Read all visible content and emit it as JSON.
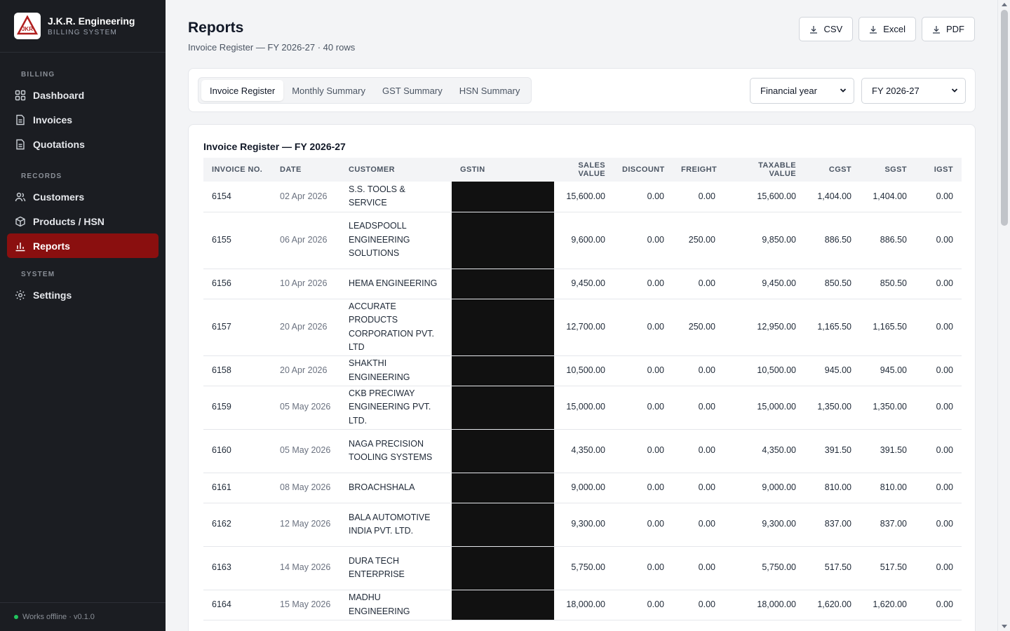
{
  "brand": {
    "name": "J.K.R. Engineering",
    "subtitle": "BILLING SYSTEM",
    "logo_text": "JKR"
  },
  "nav": {
    "billing_label": "BILLING",
    "records_label": "RECORDS",
    "system_label": "SYSTEM",
    "dashboard": "Dashboard",
    "invoices": "Invoices",
    "quotations": "Quotations",
    "customers": "Customers",
    "products": "Products / HSN",
    "reports": "Reports",
    "settings": "Settings"
  },
  "footer": {
    "status": "Works offline · v0.1.0"
  },
  "page": {
    "title": "Reports",
    "subtitle": "Invoice Register — FY 2026-27 · 40 rows"
  },
  "exports": {
    "csv": "CSV",
    "excel": "Excel",
    "pdf": "PDF"
  },
  "tabs": {
    "invoice_register": "Invoice Register",
    "monthly_summary": "Monthly Summary",
    "gst_summary": "GST Summary",
    "hsn_summary": "HSN Summary"
  },
  "filters": {
    "period_type": "Financial year",
    "period": "FY 2026-27"
  },
  "table": {
    "title": "Invoice Register — FY 2026-27",
    "headers": {
      "invoice_no": "INVOICE NO.",
      "date": "DATE",
      "customer": "CUSTOMER",
      "gstin": "GSTIN",
      "sales_value": "SALES VALUE",
      "discount": "DISCOUNT",
      "freight": "FREIGHT",
      "taxable_value": "TAXABLE VALUE",
      "cgst": "CGST",
      "sgst": "SGST",
      "igst": "IGST"
    },
    "rows": [
      {
        "inv": "6154",
        "date": "02 Apr 2026",
        "customer": "S.S. TOOLS & SERVICE",
        "gstin": "",
        "sales": "15,600.00",
        "discount": "0.00",
        "freight": "0.00",
        "taxable": "15,600.00",
        "cgst": "1,404.00",
        "sgst": "1,404.00",
        "igst": "0.00"
      },
      {
        "inv": "6155",
        "date": "06 Apr 2026",
        "customer": "LEADSPOOLL ENGINEERING SOLUTIONS",
        "gstin": "",
        "sales": "9,600.00",
        "discount": "0.00",
        "freight": "250.00",
        "taxable": "9,850.00",
        "cgst": "886.50",
        "sgst": "886.50",
        "igst": "0.00"
      },
      {
        "inv": "6156",
        "date": "10 Apr 2026",
        "customer": "HEMA ENGINEERING",
        "gstin": "",
        "sales": "9,450.00",
        "discount": "0.00",
        "freight": "0.00",
        "taxable": "9,450.00",
        "cgst": "850.50",
        "sgst": "850.50",
        "igst": "0.00"
      },
      {
        "inv": "6157",
        "date": "20 Apr 2026",
        "customer": "ACCURATE PRODUCTS CORPORATION PVT. LTD",
        "gstin": "",
        "sales": "12,700.00",
        "discount": "0.00",
        "freight": "250.00",
        "taxable": "12,950.00",
        "cgst": "1,165.50",
        "sgst": "1,165.50",
        "igst": "0.00"
      },
      {
        "inv": "6158",
        "date": "20 Apr 2026",
        "customer": "SHAKTHI ENGINEERING",
        "gstin": "",
        "sales": "10,500.00",
        "discount": "0.00",
        "freight": "0.00",
        "taxable": "10,500.00",
        "cgst": "945.00",
        "sgst": "945.00",
        "igst": "0.00"
      },
      {
        "inv": "6159",
        "date": "05 May 2026",
        "customer": "CKB PRECIWAY ENGINEERING PVT. LTD.",
        "gstin": "",
        "sales": "15,000.00",
        "discount": "0.00",
        "freight": "0.00",
        "taxable": "15,000.00",
        "cgst": "1,350.00",
        "sgst": "1,350.00",
        "igst": "0.00"
      },
      {
        "inv": "6160",
        "date": "05 May 2026",
        "customer": "NAGA PRECISION TOOLING SYSTEMS",
        "gstin": "",
        "sales": "4,350.00",
        "discount": "0.00",
        "freight": "0.00",
        "taxable": "4,350.00",
        "cgst": "391.50",
        "sgst": "391.50",
        "igst": "0.00"
      },
      {
        "inv": "6161",
        "date": "08 May 2026",
        "customer": "BROACHSHALA",
        "gstin": "",
        "sales": "9,000.00",
        "discount": "0.00",
        "freight": "0.00",
        "taxable": "9,000.00",
        "cgst": "810.00",
        "sgst": "810.00",
        "igst": "0.00"
      },
      {
        "inv": "6162",
        "date": "12 May 2026",
        "customer": "BALA AUTOMOTIVE INDIA PVT. LTD.",
        "gstin": "",
        "sales": "9,300.00",
        "discount": "0.00",
        "freight": "0.00",
        "taxable": "9,300.00",
        "cgst": "837.00",
        "sgst": "837.00",
        "igst": "0.00"
      },
      {
        "inv": "6163",
        "date": "14 May 2026",
        "customer": "DURA TECH ENTERPRISE",
        "gstin": "",
        "sales": "5,750.00",
        "discount": "0.00",
        "freight": "0.00",
        "taxable": "5,750.00",
        "cgst": "517.50",
        "sgst": "517.50",
        "igst": "0.00"
      },
      {
        "inv": "6164",
        "date": "15 May 2026",
        "customer": "MADHU ENGINEERING",
        "gstin": "",
        "sales": "18,000.00",
        "discount": "0.00",
        "freight": "0.00",
        "taxable": "18,000.00",
        "cgst": "1,620.00",
        "sgst": "1,620.00",
        "igst": "0.00"
      }
    ]
  },
  "colors": {
    "accent": "#8a0f0f",
    "sidebar_bg": "#1b1d22",
    "online_dot": "#22c55e"
  }
}
